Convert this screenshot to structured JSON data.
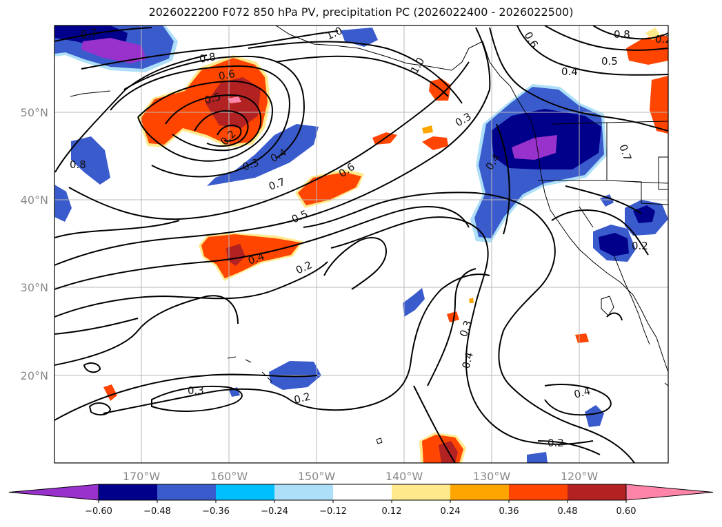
{
  "title": "2026022200 F072 850 hPa PV, precipitation PC (2026022400 - 2026022500)",
  "lon_ticks": [
    "170°W",
    "160°W",
    "150°W",
    "140°W",
    "130°W",
    "120°W"
  ],
  "lat_ticks": [
    "50°N",
    "40°N",
    "30°N",
    "20°N"
  ],
  "colorbar": {
    "ticks": [
      "−0.60",
      "−0.48",
      "−0.36",
      "−0.24",
      "−0.12",
      "0.12",
      "0.24",
      "0.36",
      "0.48",
      "0.60"
    ],
    "colors": [
      "#9932CC",
      "#00008B",
      "#3A5BCC",
      "#00BFFF",
      "#ADE0F8",
      "#FFFFFF",
      "#FFE98A",
      "#FFA500",
      "#FF4500",
      "#B22222",
      "#FF85A8"
    ]
  },
  "contour_labels": [
    "0.7",
    "1.0",
    "0.6",
    "0.8",
    "0.8",
    "0.6",
    "0.5",
    "0.4",
    "0.5",
    "1.0",
    "0.2",
    "0.3",
    "0.4",
    "0.7",
    "0.6",
    "0.5",
    "0.4",
    "0.2",
    "0.3",
    "0.4",
    "0.3",
    "0.4",
    "0.2",
    "0.3",
    "0.2",
    "0.4",
    "0.2",
    "0.8",
    "0.7",
    "0.2"
  ]
}
